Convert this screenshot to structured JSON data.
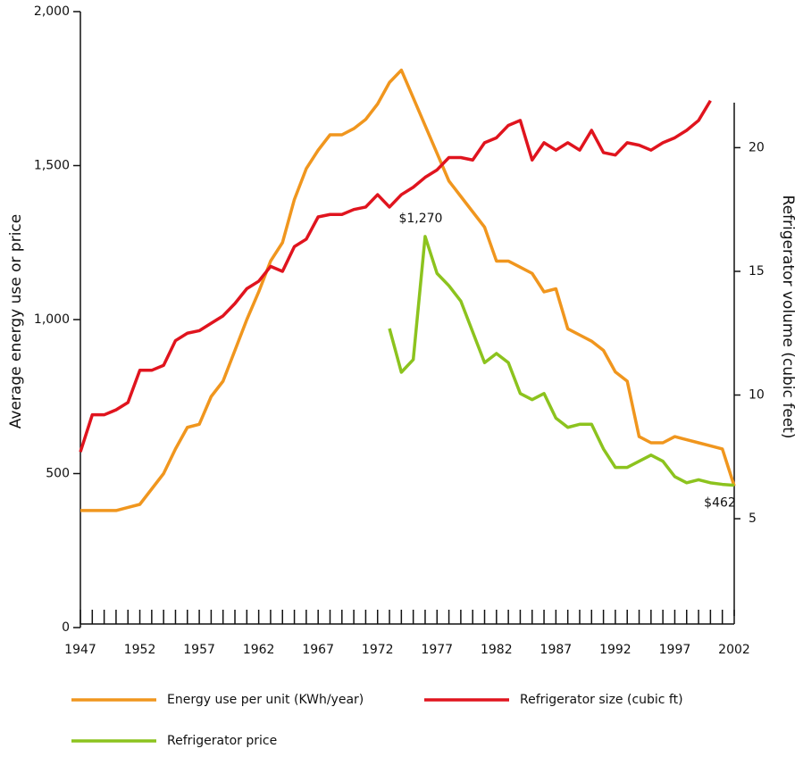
{
  "chart_data": {
    "type": "line",
    "ylabel": "Average energy use or price",
    "y2label": "Refrigerator volume (cubic feet)",
    "x": [
      1947,
      1948,
      1949,
      1950,
      1951,
      1952,
      1953,
      1954,
      1955,
      1956,
      1957,
      1958,
      1959,
      1960,
      1961,
      1962,
      1963,
      1964,
      1965,
      1966,
      1967,
      1968,
      1969,
      1970,
      1971,
      1972,
      1973,
      1974,
      1975,
      1976,
      1977,
      1978,
      1979,
      1980,
      1981,
      1982,
      1983,
      1984,
      1985,
      1986,
      1987,
      1988,
      1989,
      1990,
      1991,
      1992,
      1993,
      1994,
      1995,
      1996,
      1997,
      1998,
      1999,
      2000,
      2001,
      2002
    ],
    "xlim": [
      1947,
      2002
    ],
    "xticks": [
      1947,
      1952,
      1957,
      1962,
      1967,
      1972,
      1977,
      1982,
      1987,
      1992,
      1997,
      2002
    ],
    "ylim": [
      0,
      2000
    ],
    "yticks": [
      0,
      500,
      {
        "value": 1000,
        "label": "1,000"
      },
      {
        "value": 1500,
        "label": "1,500"
      },
      {
        "value": 2000,
        "label": "2,000"
      }
    ],
    "y2lim": [
      0.6,
      25.5
    ],
    "y2ticks": [
      5,
      10,
      15,
      20
    ],
    "series": [
      {
        "name": "Energy use per unit (KWh/year)",
        "color": "#f0961e",
        "values": [
          380,
          380,
          380,
          380,
          390,
          400,
          450,
          500,
          580,
          650,
          660,
          750,
          800,
          900,
          1000,
          1090,
          1190,
          1250,
          1390,
          1490,
          1550,
          1600,
          1600,
          1620,
          1650,
          1700,
          1770,
          1810,
          1720,
          1630,
          1540,
          1450,
          1400,
          1350,
          1300,
          1190,
          1190,
          1170,
          1150,
          1090,
          1100,
          970,
          950,
          930,
          900,
          830,
          800,
          620,
          600,
          600,
          620,
          610,
          600,
          590,
          580,
          460
        ]
      },
      {
        "name": "Refrigerator size (cubic ft)",
        "color": "#e0141e",
        "axis": "y2",
        "values": [
          7.7,
          9.2,
          9.2,
          9.4,
          9.7,
          11.0,
          11.0,
          11.2,
          12.2,
          12.5,
          12.6,
          12.9,
          13.2,
          13.7,
          14.3,
          14.6,
          15.2,
          15.0,
          16.0,
          16.3,
          17.2,
          17.3,
          17.3,
          17.5,
          17.6,
          18.1,
          17.6,
          18.1,
          18.4,
          18.8,
          19.1,
          19.6,
          19.6,
          19.5,
          20.2,
          20.4,
          20.9,
          21.1,
          19.5,
          20.2,
          19.9,
          20.2,
          19.9,
          20.7,
          19.8,
          19.7,
          20.2,
          20.1,
          19.9,
          20.2,
          20.4,
          20.7,
          21.1,
          21.9,
          null,
          null
        ]
      },
      {
        "name": "Refrigerator price",
        "color": "#8cc31e",
        "values": [
          null,
          null,
          null,
          null,
          null,
          null,
          null,
          null,
          null,
          null,
          null,
          null,
          null,
          null,
          null,
          null,
          null,
          null,
          null,
          null,
          null,
          null,
          null,
          null,
          null,
          null,
          971,
          829,
          870,
          1270,
          1150,
          1110,
          1060,
          960,
          860,
          890,
          860,
          760,
          740,
          760,
          680,
          650,
          660,
          660,
          580,
          520,
          520,
          540,
          560,
          540,
          490,
          470,
          480,
          470,
          465,
          462
        ]
      }
    ],
    "annotations": [
      {
        "text": "$1,270",
        "x": 1976,
        "y": 1270
      },
      {
        "text": "$462",
        "x": 2002,
        "y": 462
      }
    ]
  }
}
